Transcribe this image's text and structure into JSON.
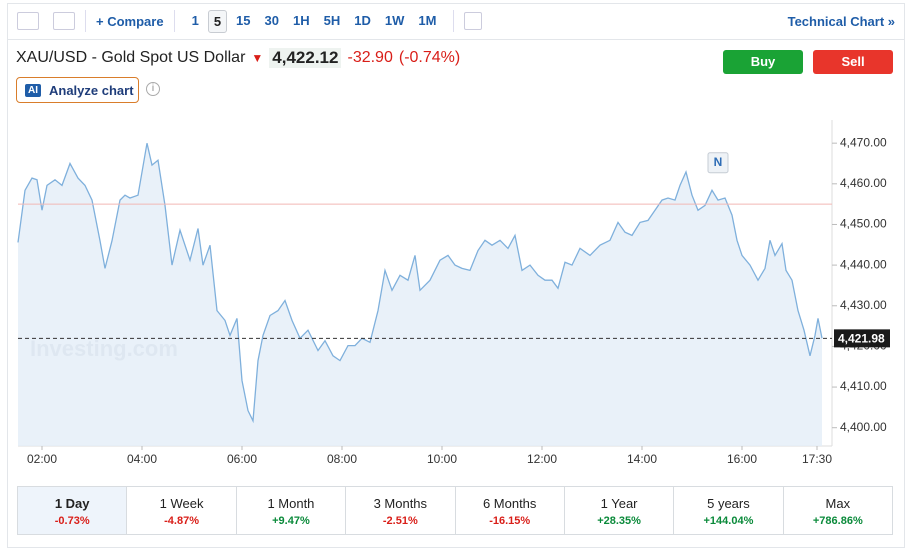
{
  "toolbar": {
    "compare": "Compare",
    "intervals": [
      "1",
      "5",
      "15",
      "30",
      "1H",
      "5H",
      "1D",
      "1W",
      "1M"
    ],
    "active_interval_index": 1,
    "technical_chart": "Technical Chart »"
  },
  "header": {
    "instrument": "XAU/USD - Gold Spot US Dollar",
    "price": "4,422.12",
    "change": "-32.90",
    "change_pct": "(-0.74%)",
    "ai_badge": "AI",
    "analyze": "Analyze chart",
    "buy": "Buy",
    "sell": "Sell"
  },
  "chart_data": {
    "type": "line",
    "watermark": "Investing.com",
    "x": [
      1.52,
      1.66,
      1.8,
      1.9,
      2,
      2.1,
      2.26,
      2.4,
      2.56,
      2.72,
      2.86,
      3,
      3.16,
      3.26,
      3.4,
      3.56,
      3.66,
      3.76,
      3.92,
      4.1,
      4.2,
      4.32,
      4.46,
      4.6,
      4.76,
      4.96,
      5.12,
      5.22,
      5.36,
      5.5,
      5.66,
      5.76,
      5.9,
      6,
      6.12,
      6.22,
      6.32,
      6.42,
      6.56,
      6.72,
      6.86,
      7,
      7.16,
      7.32,
      7.52,
      7.66,
      7.82,
      7.96,
      8.12,
      8.26,
      8.4,
      8.56,
      8.72,
      8.86,
      9,
      9.16,
      9.32,
      9.46,
      9.56,
      9.76,
      9.96,
      10.12,
      10.26,
      10.4,
      10.56,
      10.72,
      10.86,
      11,
      11.16,
      11.32,
      11.46,
      11.6,
      11.76,
      11.92,
      12.06,
      12.2,
      12.32,
      12.46,
      12.6,
      12.76,
      12.96,
      13.16,
      13.36,
      13.52,
      13.66,
      13.8,
      13.96,
      14.12,
      14.26,
      14.4,
      14.52,
      14.66,
      14.76,
      14.88,
      15,
      15.12,
      15.26,
      15.4,
      15.52,
      15.66,
      15.8,
      15.9,
      16,
      16.16,
      16.32,
      16.46,
      16.56,
      16.66,
      16.8,
      16.88,
      17,
      17.12,
      17.24,
      17.36,
      17.46,
      17.52,
      17.6
    ],
    "series": [
      {
        "color": "#7fb0dc",
        "values": [
          4445.6,
          4458.4,
          4461.4,
          4461,
          4453.5,
          4459.6,
          4461,
          4459.6,
          4465,
          4461.4,
          4459.6,
          4456,
          4446,
          4439.2,
          4446,
          4456,
          4457.2,
          4456.5,
          4457.2,
          4470,
          4464.6,
          4465.8,
          4454.7,
          4440,
          4448.6,
          4441.2,
          4449,
          4440,
          4444.9,
          4428.8,
          4426.4,
          4422.7,
          4426.9,
          4411.6,
          4404.2,
          4401.7,
          4416.5,
          4422.7,
          4427.6,
          4428.8,
          4431.3,
          4426.4,
          4422,
          4424,
          4419,
          4421.4,
          4417.7,
          4416.5,
          4420.2,
          4420.2,
          4422,
          4421,
          4428.8,
          4438.7,
          4433.8,
          4437.5,
          4436.3,
          4442.4,
          4433.8,
          4436.3,
          4441.2,
          4442.4,
          4440,
          4439.2,
          4438.7,
          4443.6,
          4446.1,
          4444.9,
          4446.1,
          4444.1,
          4447.3,
          4438.7,
          4440,
          4437.5,
          4436.3,
          4436.3,
          4434.3,
          4440.7,
          4440,
          4444.1,
          4442.4,
          4444.9,
          4446.1,
          4450.5,
          4448.1,
          4447.3,
          4450.5,
          4451,
          4453.5,
          4456,
          4456.5,
          4456,
          4459.6,
          4462.9,
          4457.2,
          4453.5,
          4454.7,
          4458.4,
          4456,
          4456.5,
          4452.3,
          4446.1,
          4442.4,
          4440,
          4436.3,
          4439.2,
          4446.1,
          4442.4,
          4445.3,
          4438.7,
          4436.3,
          4428.8,
          4424,
          4417.7,
          4422.7,
          4426.9,
          4422
        ]
      }
    ],
    "fill_color": "#e4edf7",
    "xlim": [
      1.52,
      17.8
    ],
    "ylim": [
      4395.5,
      4475.7
    ],
    "xticks": [
      {
        "value": 2,
        "label": "02:00"
      },
      {
        "value": 4,
        "label": "04:00"
      },
      {
        "value": 6,
        "label": "06:00"
      },
      {
        "value": 8,
        "label": "08:00"
      },
      {
        "value": 10,
        "label": "10:00"
      },
      {
        "value": 12,
        "label": "12:00"
      },
      {
        "value": 14,
        "label": "14:00"
      },
      {
        "value": 16,
        "label": "16:00"
      },
      {
        "value": 17.5,
        "label": "17:30"
      }
    ],
    "yticks": [
      {
        "value": 4400,
        "label": "4,400.00"
      },
      {
        "value": 4410,
        "label": "4,410.00"
      },
      {
        "value": 4420,
        "label": "4,420.00"
      },
      {
        "value": 4430,
        "label": "4,430.00"
      },
      {
        "value": 4440,
        "label": "4,440.00"
      },
      {
        "value": 4450,
        "label": "4,450.00"
      },
      {
        "value": 4460,
        "label": "4,460.00"
      },
      {
        "value": 4470,
        "label": "4,470.00"
      }
    ],
    "reference_line": {
      "value": 4455,
      "color": "#f2b8b5"
    },
    "current_price": {
      "value": 4421.98,
      "label": "4,421.98"
    },
    "marker": {
      "x": 15.5,
      "y": 4461.5,
      "label": "N"
    }
  },
  "periods": [
    {
      "label": "1 Day",
      "change": "-0.73%"
    },
    {
      "label": "1 Week",
      "change": "-4.87%"
    },
    {
      "label": "1 Month",
      "change": "+9.47%"
    },
    {
      "label": "3 Months",
      "change": "-2.51%"
    },
    {
      "label": "6 Months",
      "change": "-16.15%"
    },
    {
      "label": "1 Year",
      "change": "+28.35%"
    },
    {
      "label": "5 years",
      "change": "+144.04%"
    },
    {
      "label": "Max",
      "change": "+786.86%"
    }
  ],
  "active_period_index": 0
}
